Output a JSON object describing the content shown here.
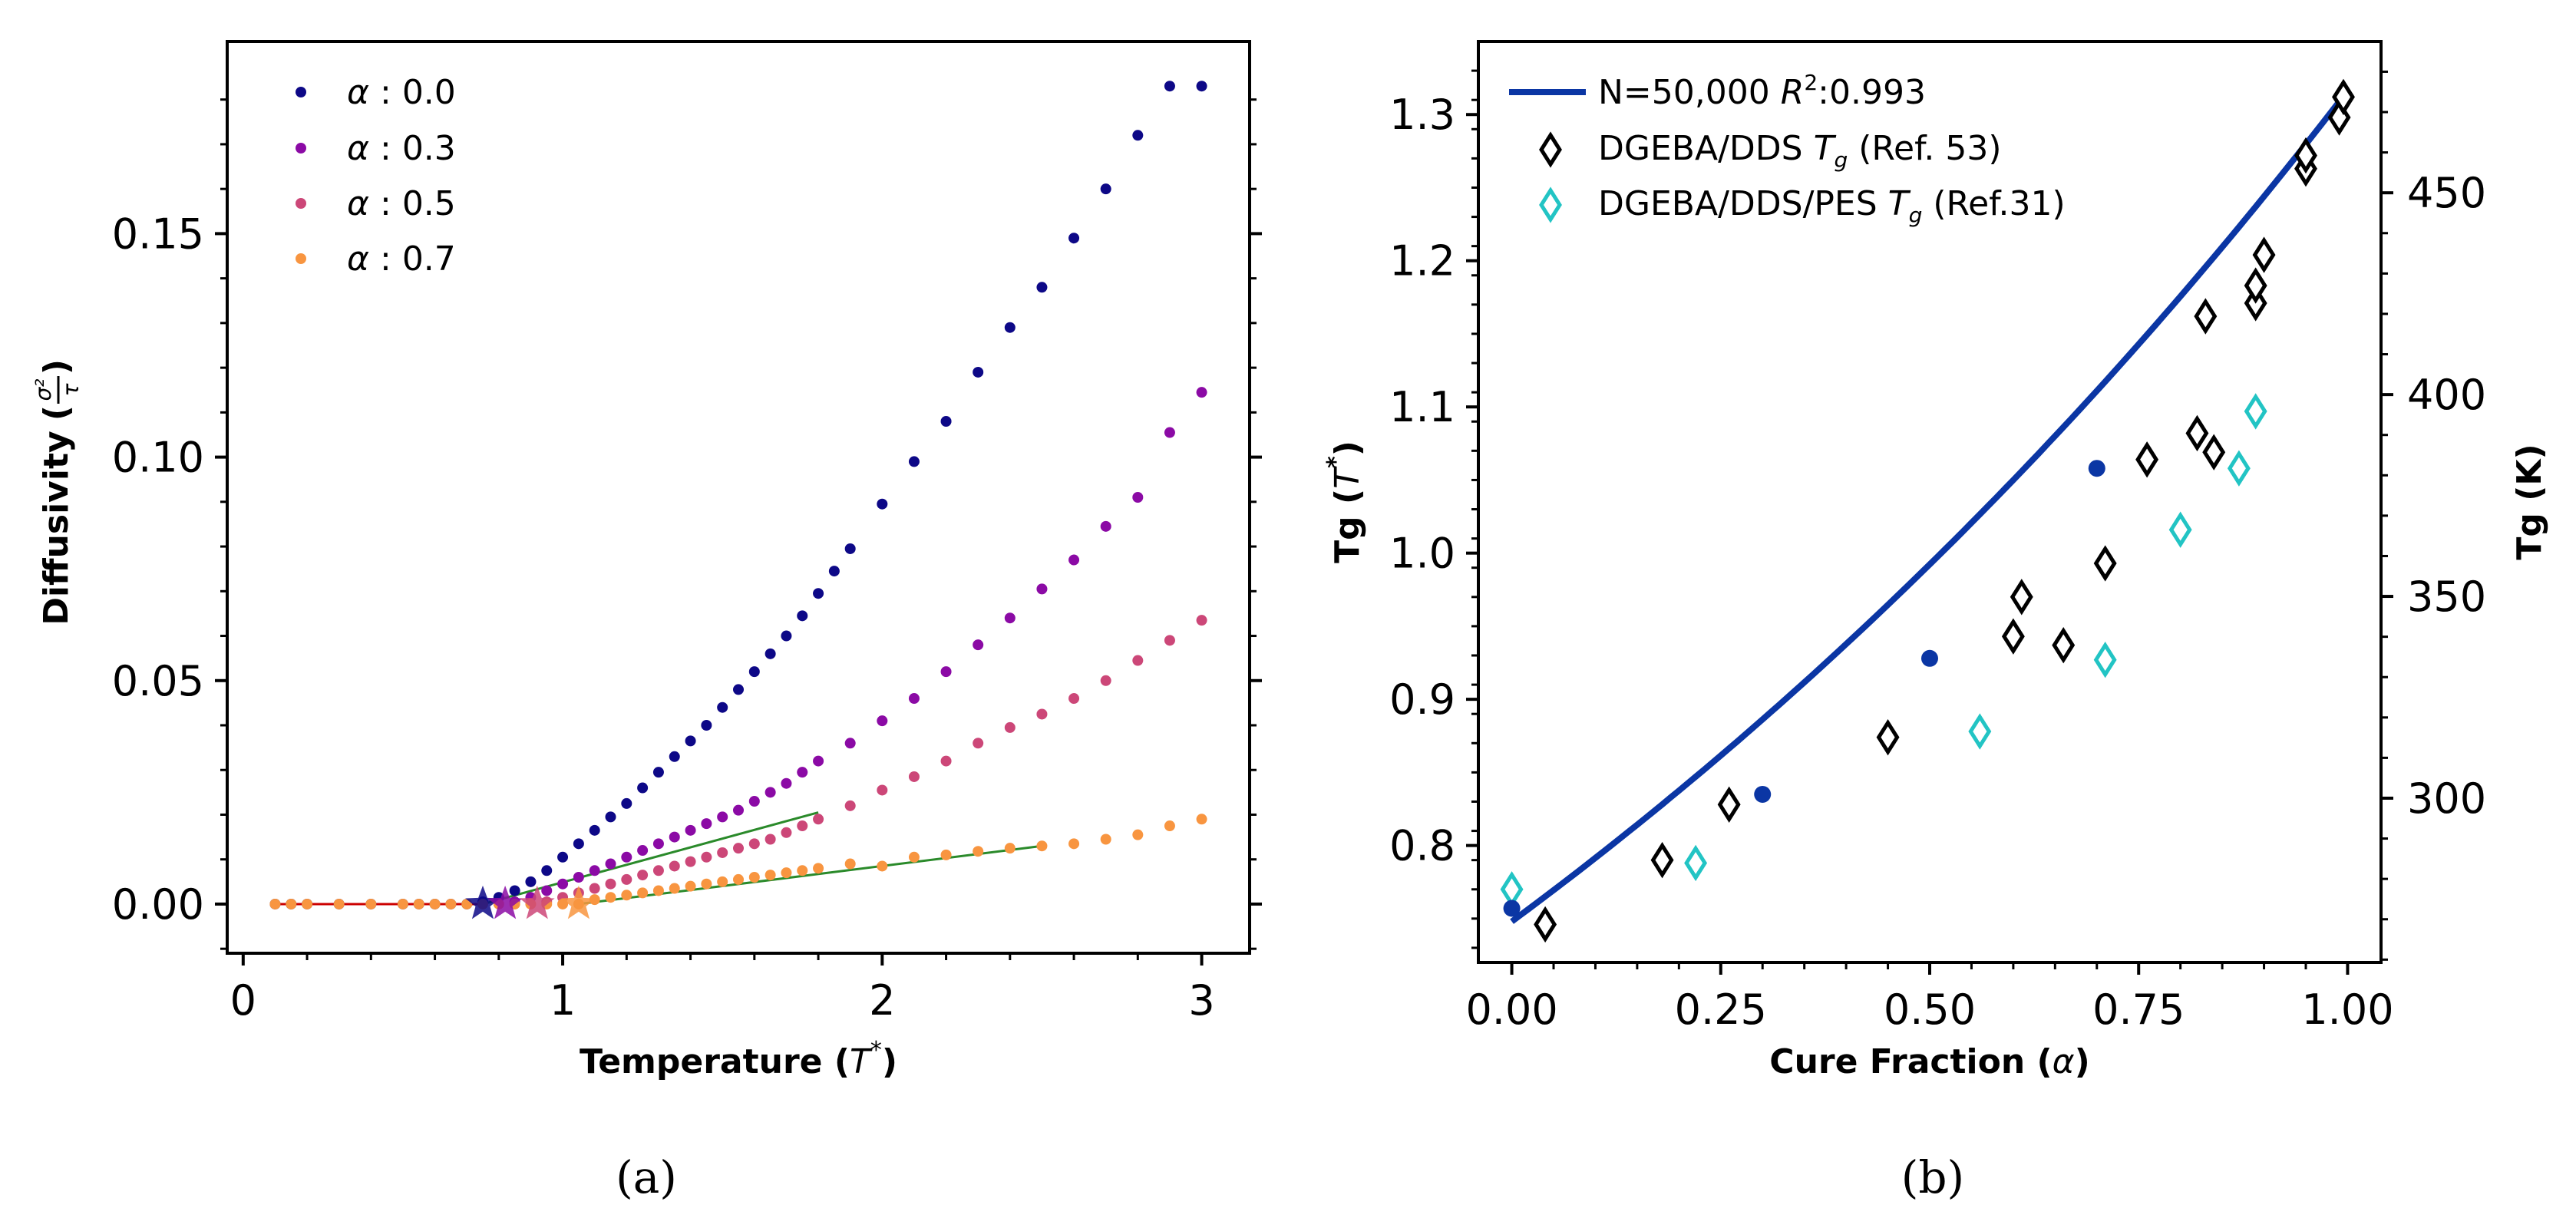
{
  "chart_data": [
    {
      "type": "scatter",
      "panel_label": "(a)",
      "xlabel": "Temperature",
      "xlabel_sym": "T",
      "xlabel_sup": "*",
      "ylabel": "Diffusivity",
      "ylabel_frac_num": "σ²",
      "ylabel_frac_den": "τ",
      "xlim": [
        -0.05,
        3.15
      ],
      "ylim": [
        -0.011,
        0.193
      ],
      "xticks": [
        0,
        1,
        2,
        3
      ],
      "xtick_labels": [
        "0",
        "1",
        "2",
        "3"
      ],
      "yticks": [
        0.0,
        0.05,
        0.1,
        0.15
      ],
      "ytick_labels": [
        "0.00",
        "0.05",
        "0.10",
        "0.15"
      ],
      "legend_position": "top-left",
      "series": [
        {
          "name": "α : 0.0",
          "legend_sym": "α",
          "legend_val": " : 0.0",
          "color": "#0d0887",
          "x": [
            0.1,
            0.15,
            0.2,
            0.3,
            0.4,
            0.5,
            0.55,
            0.6,
            0.65,
            0.7,
            0.75,
            0.8,
            0.85,
            0.9,
            0.95,
            1.0,
            1.05,
            1.1,
            1.15,
            1.2,
            1.25,
            1.3,
            1.35,
            1.4,
            1.45,
            1.5,
            1.55,
            1.6,
            1.65,
            1.7,
            1.75,
            1.8,
            1.85,
            1.9,
            2.0,
            2.1,
            2.2,
            2.3,
            2.4,
            2.5,
            2.6,
            2.7,
            2.8,
            2.9,
            3.0
          ],
          "y": [
            0,
            0,
            0,
            0,
            0,
            0,
            0,
            0,
            0,
            0,
            0.0005,
            0.0015,
            0.003,
            0.005,
            0.0075,
            0.0105,
            0.0135,
            0.0165,
            0.0195,
            0.0225,
            0.026,
            0.0295,
            0.033,
            0.0365,
            0.04,
            0.044,
            0.048,
            0.052,
            0.056,
            0.06,
            0.0645,
            0.0695,
            0.0745,
            0.0795,
            0.0895,
            0.099,
            0.108,
            0.119,
            0.129,
            0.138,
            0.149,
            0.16,
            0.172,
            0.183,
            0.183
          ]
        },
        {
          "name": "α : 0.3",
          "legend_sym": "α",
          "legend_val": " : 0.3",
          "color": "#8b0aa5",
          "x": [
            0.85,
            0.9,
            0.95,
            1.0,
            1.05,
            1.1,
            1.15,
            1.2,
            1.25,
            1.3,
            1.35,
            1.4,
            1.45,
            1.5,
            1.55,
            1.6,
            1.65,
            1.7,
            1.75,
            1.8,
            1.9,
            2.0,
            2.1,
            2.2,
            2.3,
            2.4,
            2.5,
            2.6,
            2.7,
            2.8,
            2.9,
            3.0
          ],
          "y": [
            0.0005,
            0.0015,
            0.003,
            0.0045,
            0.006,
            0.0075,
            0.009,
            0.0105,
            0.012,
            0.0135,
            0.015,
            0.0165,
            0.018,
            0.0195,
            0.021,
            0.023,
            0.025,
            0.027,
            0.0295,
            0.032,
            0.036,
            0.041,
            0.046,
            0.052,
            0.058,
            0.064,
            0.0705,
            0.077,
            0.0845,
            0.091,
            0.1055,
            0.1145
          ]
        },
        {
          "name": "α : 0.5",
          "legend_sym": "α",
          "legend_val": " : 0.5",
          "color": "#cc4778",
          "x": [
            0.95,
            1.0,
            1.05,
            1.1,
            1.15,
            1.2,
            1.25,
            1.3,
            1.35,
            1.4,
            1.45,
            1.5,
            1.55,
            1.6,
            1.65,
            1.7,
            1.75,
            1.8,
            1.9,
            2.0,
            2.1,
            2.2,
            2.3,
            2.4,
            2.5,
            2.6,
            2.7,
            2.8,
            2.9,
            3.0
          ],
          "y": [
            0.0005,
            0.0015,
            0.0025,
            0.0035,
            0.0045,
            0.0055,
            0.0065,
            0.0075,
            0.0085,
            0.0095,
            0.0105,
            0.0115,
            0.0125,
            0.0135,
            0.0145,
            0.016,
            0.0175,
            0.019,
            0.022,
            0.0255,
            0.0285,
            0.032,
            0.036,
            0.0395,
            0.0425,
            0.046,
            0.05,
            0.0545,
            0.059,
            0.0635
          ]
        },
        {
          "name": "α : 0.7",
          "legend_sym": "α",
          "legend_val": " : 0.7",
          "color": "#f89540",
          "x": [
            0.1,
            0.15,
            0.2,
            0.3,
            0.4,
            0.5,
            0.55,
            0.6,
            0.65,
            0.7,
            0.75,
            0.8,
            0.85,
            0.9,
            0.95,
            1.0,
            1.05,
            1.1,
            1.15,
            1.2,
            1.25,
            1.3,
            1.35,
            1.4,
            1.45,
            1.5,
            1.55,
            1.6,
            1.65,
            1.7,
            1.75,
            1.8,
            1.9,
            2.0,
            2.1,
            2.2,
            2.3,
            2.4,
            2.5,
            2.6,
            2.7,
            2.8,
            2.9,
            3.0
          ],
          "y": [
            0,
            0,
            0,
            0,
            0,
            0,
            0,
            0,
            0,
            0,
            0,
            0,
            0,
            0,
            0,
            0,
            0,
            0.001,
            0.0015,
            0.002,
            0.0025,
            0.003,
            0.0035,
            0.004,
            0.0045,
            0.005,
            0.0055,
            0.006,
            0.0065,
            0.007,
            0.0075,
            0.008,
            0.009,
            0.0085,
            0.0105,
            0.011,
            0.0118,
            0.0125,
            0.013,
            0.0135,
            0.0145,
            0.0155,
            0.0175,
            0.019
          ]
        }
      ],
      "stars": [
        {
          "x": 0.75,
          "y": 0.0,
          "color": "#0d0887"
        },
        {
          "x": 0.82,
          "y": 0.0,
          "color": "#8b0aa5"
        },
        {
          "x": 0.92,
          "y": 0.0,
          "color": "#cc4778"
        },
        {
          "x": 1.05,
          "y": 0.0,
          "color": "#f89540"
        }
      ],
      "fit_lines": [
        {
          "color": "#cc0000",
          "x": [
            0.1,
            0.75
          ],
          "y": [
            0,
            0
          ]
        },
        {
          "color": "#2a8a2a",
          "x": [
            0.75,
            1.8
          ],
          "y": [
            0,
            0.0205
          ]
        },
        {
          "color": "#2a8a2a",
          "x": [
            1.05,
            2.5
          ],
          "y": [
            0.0,
            0.013
          ]
        }
      ]
    },
    {
      "type": "scatter",
      "panel_label": "(b)",
      "xlabel": "Cure Fraction",
      "xlabel_sym": "α",
      "ylabel": "Tg",
      "ylabel_sym": "T",
      "ylabel_sup": "*",
      "y2label": "Tg (K)",
      "xlim": [
        -0.04,
        1.04
      ],
      "ylim": [
        0.72,
        1.35
      ],
      "xticks": [
        0.0,
        0.25,
        0.5,
        0.75,
        1.0
      ],
      "xtick_labels": [
        "0.00",
        "0.25",
        "0.50",
        "0.75",
        "1.00"
      ],
      "yticks": [
        0.8,
        0.9,
        1.0,
        1.1,
        1.2,
        1.3
      ],
      "ytick_labels": [
        "0.8",
        "0.9",
        "1.0",
        "1.1",
        "1.2",
        "1.3"
      ],
      "y2lim": [
        259.3,
        487.5
      ],
      "y2ticks": [
        300,
        350,
        400,
        450
      ],
      "y2tick_labels": [
        "300",
        "350",
        "400",
        "450"
      ],
      "legend_position": "top-left",
      "fit_curve": {
        "name": "N=50,000",
        "r2_label": "R",
        "r2_sup": "2",
        "r2_value": ":0.993",
        "color": "#0b36a4",
        "a": 0.748,
        "b": 0.5652
      },
      "simulation_points": {
        "color": "#0b36a4",
        "x": [
          0.0,
          0.3,
          0.5,
          0.7
        ],
        "y": [
          0.757,
          0.835,
          0.928,
          1.058
        ]
      },
      "series": [
        {
          "name": "DGEBA/DDS",
          "tg_sym": "T",
          "tg_sub": "g",
          "ref": "(Ref. 53)",
          "color": "#000000",
          "x": [
            0.04,
            0.18,
            0.26,
            0.45,
            0.6,
            0.61,
            0.66,
            0.71,
            0.76,
            0.82,
            0.84,
            0.83,
            0.89,
            0.89,
            0.9,
            0.95,
            0.95,
            0.99,
            0.995
          ],
          "y": [
            0.746,
            0.79,
            0.828,
            0.874,
            0.943,
            0.97,
            0.937,
            0.993,
            1.064,
            1.082,
            1.069,
            1.162,
            1.171,
            1.183,
            1.204,
            1.263,
            1.272,
            1.298,
            1.312
          ]
        },
        {
          "name": "DGEBA/DDS/PES",
          "tg_sym": "T",
          "tg_sub": "g",
          "ref": "(Ref.31)",
          "color": "#22c4c4",
          "x": [
            0.0,
            0.22,
            0.56,
            0.71,
            0.8,
            0.87,
            0.89
          ],
          "y": [
            0.77,
            0.788,
            0.878,
            0.927,
            1.016,
            1.058,
            1.097
          ]
        }
      ]
    }
  ]
}
